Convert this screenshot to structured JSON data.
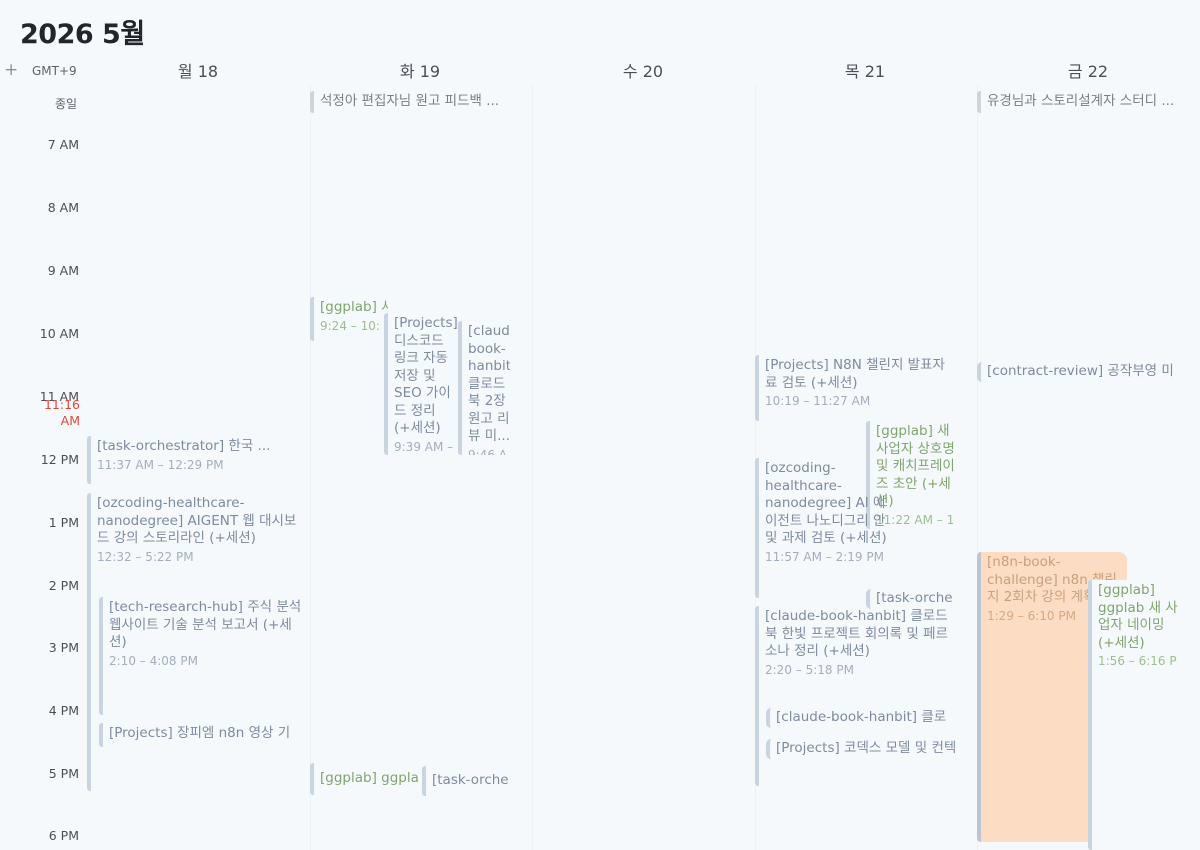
{
  "header": {
    "title": "2026 5월",
    "add_label": "+",
    "timezone": "GMT+9"
  },
  "days": [
    {
      "label": "월 18"
    },
    {
      "label": "화 19"
    },
    {
      "label": "수 20"
    },
    {
      "label": "목 21"
    },
    {
      "label": "금 22"
    }
  ],
  "allday_label": "종일",
  "hours": [
    "7 AM",
    "8 AM",
    "9 AM",
    "10 AM",
    "11 AM",
    "12 PM",
    "1 PM",
    "2 PM",
    "3 PM",
    "4 PM",
    "5 PM",
    "6 PM"
  ],
  "now_label": "11:16 AM",
  "allday_events": {
    "tue": "석정아 편집자님 원고 피드백 ...",
    "fri": "유경님과 스토리설계자 스터디 ..."
  },
  "events": {
    "mon1": {
      "title": "[task-orchestrator] 한국 ...",
      "time": "11:37 AM – 12:29 PM"
    },
    "mon2": {
      "title": "[ozcoding-healthcare-nanodegree] AIGENT 웹 대시보드 강의 스토리라인 (+세션)",
      "time": "12:32 – 5:22 PM"
    },
    "mon3": {
      "title": "[tech-research-hub] 주식 분석 웹사이트 기술 분석 보고서 (+세션)",
      "time": "2:10 – 4:08 PM"
    },
    "mon4": {
      "title": "[Projects] 장피엠 n8n 영상 기"
    },
    "tue1": {
      "title": "[ggplab] 서비스",
      "time": "9:24 – 10:"
    },
    "tue2": {
      "title": "[Projects] 디스코드 링크 자동 저장 및 SEO 가이드 정리 (+세션)",
      "time": "9:39 AM –"
    },
    "tue3": {
      "title": "[claude-book-hanbit] 클로드북 2장 원고 리뷰 미...",
      "time": "9:46 A"
    },
    "tue4": {
      "title": "[ggplab] ggpla"
    },
    "tue5": {
      "title": "[task-orche"
    },
    "thu1": {
      "title": "[Projects] N8N 챌린지 발표자료 검토 (+세션)",
      "time": "10:19 – 11:27 AM"
    },
    "thu2": {
      "title": "[ggplab] 새 사업자 상호명 및 캐치프레이즈 초안 (+세션)",
      "time": "11:22 AM – 1"
    },
    "thu3": {
      "title": "[ozcoding-healthcare-nanodegree] AI 에이전트 나노디그리 안 및 과제 검토 (+세션)",
      "time": "11:57 AM – 2:19 PM"
    },
    "thu4": {
      "title": "[task-orche"
    },
    "thu5": {
      "title": "[claude-book-hanbit] 클로드북 한빛 프로젝트 회의록 및 페르소나 정리 (+세션)",
      "time": "2:20 – 5:18 PM"
    },
    "thu6": {
      "title": "[claude-book-hanbit] 클로"
    },
    "thu7": {
      "title": "[Projects] 코덱스 모델 및 컨텍"
    },
    "fri1": {
      "title": "[contract-review] 공작부영 미"
    },
    "fri2": {
      "title": "[n8n-book-challenge] n8n 챌린지 2회차 강의 계획",
      "time": "1:29 – 6:10 PM"
    },
    "fri3": {
      "title": "[ggplab] ggplab 새 사업자 네이밍 (+세션)",
      "time": "1:56 – 6:16 P"
    }
  },
  "colors": {
    "accent_now": "#e0493a",
    "event_green": "#7fa56e",
    "event_orange_bg": "#fcdcc2",
    "event_bar": "#c9d4e1"
  }
}
